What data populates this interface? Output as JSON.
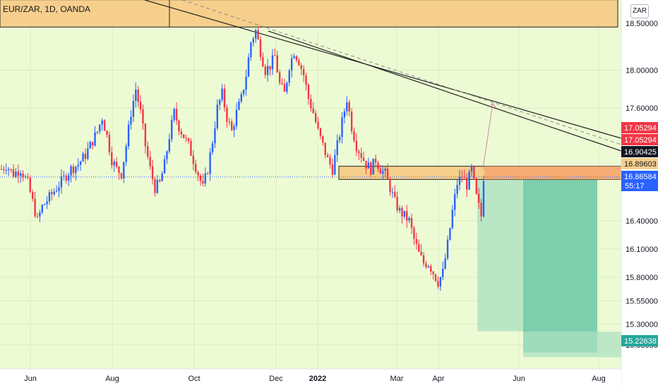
{
  "header": {
    "symbol": "EUR/ZAR, 1D, OANDA",
    "currency": "ZAR"
  },
  "colors": {
    "background": "#edfbd4",
    "up_candle": "#2962ff",
    "down_candle": "#f23645",
    "supply_zone": "#f7cf8c",
    "stop_zone": "#f5a06b",
    "target_zone_light": "#a8dfc0",
    "target_zone_dark": "#6fc9a6",
    "trendline": "#222222",
    "price_line": "#2962ff"
  },
  "chart_data": {
    "type": "candlestick",
    "symbol": "EUR/ZAR",
    "interval": "1D",
    "broker": "OANDA",
    "ylim": [
      14.95,
      18.85
    ],
    "y_ticks": [
      "18.50000",
      "18.00000",
      "17.60000",
      "16.40000",
      "16.10000",
      "15.80000",
      "15.55000",
      "15.30000",
      "15.08000"
    ],
    "x_ticks": [
      "Jun",
      "Aug",
      "Oct",
      "Dec",
      "2022",
      "Mar",
      "Apr",
      "Jun",
      "Aug"
    ],
    "price_path": [
      [
        0,
        16.95
      ],
      [
        2,
        16.99
      ],
      [
        5,
        16.9
      ],
      [
        8,
        16.95
      ],
      [
        11,
        16.8
      ],
      [
        13,
        16.6
      ],
      [
        15,
        16.4
      ],
      [
        17,
        16.55
      ],
      [
        20,
        16.65
      ],
      [
        23,
        16.75
      ],
      [
        26,
        16.85
      ],
      [
        29,
        16.95
      ],
      [
        32,
        17.0
      ],
      [
        35,
        17.1
      ],
      [
        38,
        17.25
      ],
      [
        40,
        17.35
      ],
      [
        42,
        17.5
      ],
      [
        44,
        17.3
      ],
      [
        46,
        17.05
      ],
      [
        48,
        16.95
      ],
      [
        50,
        16.9
      ],
      [
        52,
        17.2
      ],
      [
        54,
        17.55
      ],
      [
        56,
        17.8
      ],
      [
        58,
        17.55
      ],
      [
        60,
        17.2
      ],
      [
        62,
        16.95
      ],
      [
        64,
        16.75
      ],
      [
        66,
        16.8
      ],
      [
        68,
        17.0
      ],
      [
        70,
        17.3
      ],
      [
        72,
        17.55
      ],
      [
        74,
        17.4
      ],
      [
        76,
        17.3
      ],
      [
        78,
        17.2
      ],
      [
        80,
        17.05
      ],
      [
        82,
        16.9
      ],
      [
        84,
        16.75
      ],
      [
        86,
        16.95
      ],
      [
        88,
        17.25
      ],
      [
        90,
        17.6
      ],
      [
        92,
        17.75
      ],
      [
        94,
        17.5
      ],
      [
        96,
        17.35
      ],
      [
        98,
        17.55
      ],
      [
        100,
        17.7
      ],
      [
        102,
        17.95
      ],
      [
        104,
        18.3
      ],
      [
        106,
        18.42
      ],
      [
        108,
        18.2
      ],
      [
        110,
        18.0
      ],
      [
        112,
        18.05
      ],
      [
        114,
        18.15
      ],
      [
        116,
        17.85
      ],
      [
        118,
        17.75
      ],
      [
        120,
        18.05
      ],
      [
        122,
        18.2
      ],
      [
        124,
        18.1
      ],
      [
        126,
        17.95
      ],
      [
        128,
        17.7
      ],
      [
        130,
        17.55
      ],
      [
        132,
        17.35
      ],
      [
        134,
        17.2
      ],
      [
        136,
        17.05
      ],
      [
        138,
        16.95
      ],
      [
        140,
        17.2
      ],
      [
        142,
        17.45
      ],
      [
        144,
        17.7
      ],
      [
        146,
        17.4
      ],
      [
        148,
        17.2
      ],
      [
        150,
        17.1
      ],
      [
        152,
        17.0
      ],
      [
        154,
        16.95
      ],
      [
        156,
        17.05
      ],
      [
        158,
        16.95
      ],
      [
        160,
        16.9
      ],
      [
        162,
        16.75
      ],
      [
        164,
        16.6
      ],
      [
        166,
        16.5
      ],
      [
        168,
        16.45
      ],
      [
        170,
        16.4
      ],
      [
        172,
        16.2
      ],
      [
        174,
        16.05
      ],
      [
        176,
        15.95
      ],
      [
        178,
        15.95
      ],
      [
        180,
        15.85
      ],
      [
        182,
        15.75
      ],
      [
        184,
        15.85
      ],
      [
        186,
        16.15
      ],
      [
        188,
        16.5
      ],
      [
        190,
        16.8
      ],
      [
        192,
        16.88
      ],
      [
        194,
        16.78
      ],
      [
        196,
        16.95
      ],
      [
        198,
        16.65
      ],
      [
        200,
        16.45
      ],
      [
        201,
        16.87
      ]
    ],
    "horizontal_lines": [
      {
        "type": "resistance_zone",
        "y_range": [
          18.46,
          18.75
        ]
      },
      {
        "type": "supply_zone",
        "y_range": [
          16.84,
          16.98
        ]
      }
    ],
    "trendlines": [
      {
        "type": "descending",
        "from": [
          57,
          19.2
        ],
        "to": [
          260,
          16.95
        ]
      },
      {
        "type": "descending_dashed",
        "from": [
          107,
          18.45
        ],
        "to": [
          260,
          16.92
        ]
      }
    ],
    "position": {
      "side": "short",
      "entry": 16.86584,
      "stop": 16.98,
      "target": 15.22638,
      "projection_target": 17.65
    },
    "price_labels": [
      {
        "value": "17.05294",
        "bg": "#f23645",
        "fg": "#ffffff"
      },
      {
        "value": "17.05294",
        "bg": "#f23645",
        "fg": "#ffffff"
      },
      {
        "value": "16.90425",
        "bg": "#131722",
        "fg": "#ffffff"
      },
      {
        "value": "16.89603",
        "bg": "#f7cf8c",
        "fg": "#131722"
      },
      {
        "value": "16.86584",
        "bg": "#2962ff",
        "fg": "#ffffff"
      },
      {
        "value": "15.22638",
        "bg": "#26a69a",
        "fg": "#ffffff"
      }
    ],
    "countdown": "55:17"
  }
}
